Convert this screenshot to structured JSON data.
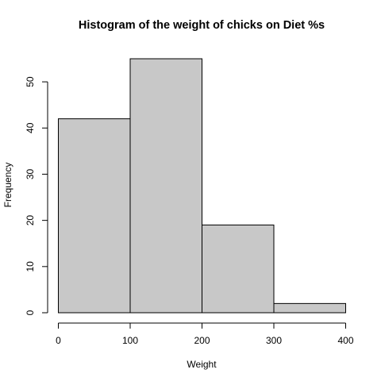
{
  "chart_data": {
    "type": "bar",
    "title": "Histogram of the weight of chicks on Diet %s",
    "xlabel": "Weight",
    "ylabel": "Frequency",
    "bins": [
      {
        "start": 0,
        "end": 100,
        "count": 42
      },
      {
        "start": 100,
        "end": 200,
        "count": 55
      },
      {
        "start": 200,
        "end": 300,
        "count": 19
      },
      {
        "start": 300,
        "end": 400,
        "count": 2
      }
    ],
    "xlim": [
      0,
      400
    ],
    "ylim": [
      0,
      55
    ],
    "x_ticks": [
      "0",
      "100",
      "200",
      "300",
      "400"
    ],
    "y_ticks": [
      "0",
      "10",
      "20",
      "30",
      "40",
      "50"
    ],
    "bar_color": "#c8c8c8",
    "border_color": "#000000",
    "grid": false,
    "legend": "none"
  }
}
